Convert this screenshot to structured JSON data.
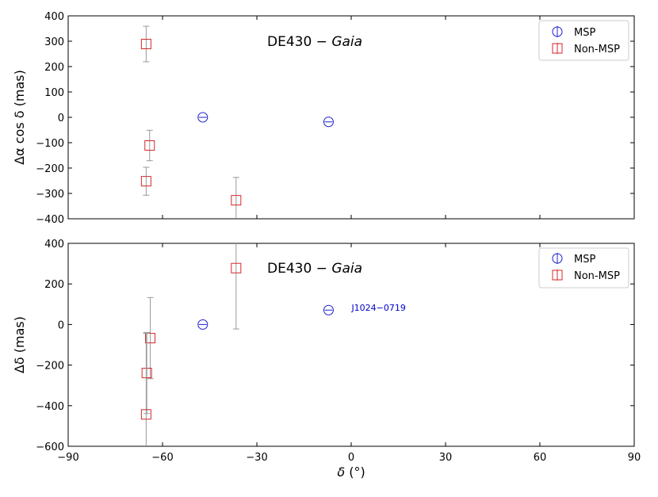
{
  "x_axis": {
    "label_symbol": "δ",
    "label_unit": "(°)",
    "ticks": [
      -90,
      -60,
      -30,
      0,
      30,
      60,
      90
    ],
    "tick_labels": [
      "−90",
      "−60",
      "−30",
      "0",
      "30",
      "60",
      "90"
    ]
  },
  "panel_top": {
    "annotation_prefix": "DE430 − ",
    "annotation_italic": "Gaia",
    "ylabel": "Δα cos δ (mas)",
    "tick_labels": [
      "400",
      "300",
      "200",
      "100",
      "0",
      "−100",
      "−200",
      "−300",
      "−400"
    ],
    "legend": [
      "MSP",
      "Non-MSP"
    ]
  },
  "panel_bottom": {
    "annotation_prefix": "DE430 − ",
    "annotation_italic": "Gaia",
    "ylabel": "Δδ (mas)",
    "tick_labels": [
      "400",
      "200",
      "0",
      "−200",
      "−400",
      "−600"
    ],
    "legend": [
      "MSP",
      "Non-MSP"
    ],
    "point_label": "J1024−0719"
  },
  "colors": {
    "msp": "#1f1fd0",
    "non_msp": "#d62728",
    "errorbar": "#999999",
    "label_blue": "#0000cc"
  },
  "chart_data": [
    {
      "type": "scatter",
      "title": "DE430 − Gaia",
      "xlabel": "δ (°)",
      "ylabel": "Δα cos δ (mas)",
      "xlim": [
        -90,
        90
      ],
      "ylim": [
        -400,
        400
      ],
      "yticks": [
        400,
        300,
        200,
        100,
        0,
        -100,
        -200,
        -300,
        -400
      ],
      "legend_position": "top-right",
      "series": [
        {
          "name": "MSP",
          "marker": "circle",
          "points": [
            {
              "x": -47.2,
              "y": 0,
              "err": 0
            },
            {
              "x": -7.2,
              "y": -18,
              "err": 0
            }
          ]
        },
        {
          "name": "Non-MSP",
          "marker": "square",
          "points": [
            {
              "x": -65.2,
              "y": 289,
              "err": 70
            },
            {
              "x": -64.1,
              "y": -111,
              "err": 60
            },
            {
              "x": -65.2,
              "y": -252,
              "err": 55
            },
            {
              "x": -36.6,
              "y": -327,
              "err": 90
            }
          ]
        }
      ]
    },
    {
      "type": "scatter",
      "title": "DE430 − Gaia",
      "xlabel": "δ (°)",
      "ylabel": "Δδ (mas)",
      "xlim": [
        -90,
        90
      ],
      "ylim": [
        -600,
        400
      ],
      "yticks": [
        400,
        200,
        0,
        -200,
        -400,
        -600
      ],
      "legend_position": "top-right",
      "series": [
        {
          "name": "MSP",
          "marker": "circle",
          "points": [
            {
              "x": -47.2,
              "y": 0,
              "err": 0
            },
            {
              "x": -7.2,
              "y": 71,
              "err": 0,
              "label": "J1024−0719"
            }
          ]
        },
        {
          "name": "Non-MSP",
          "marker": "square",
          "points": [
            {
              "x": -36.6,
              "y": 278,
              "err": 300
            },
            {
              "x": -63.9,
              "y": -67,
              "err": 200
            },
            {
              "x": -65.0,
              "y": -239,
              "err": 200
            },
            {
              "x": -65.2,
              "y": -443,
              "err": 400
            }
          ]
        }
      ]
    }
  ]
}
